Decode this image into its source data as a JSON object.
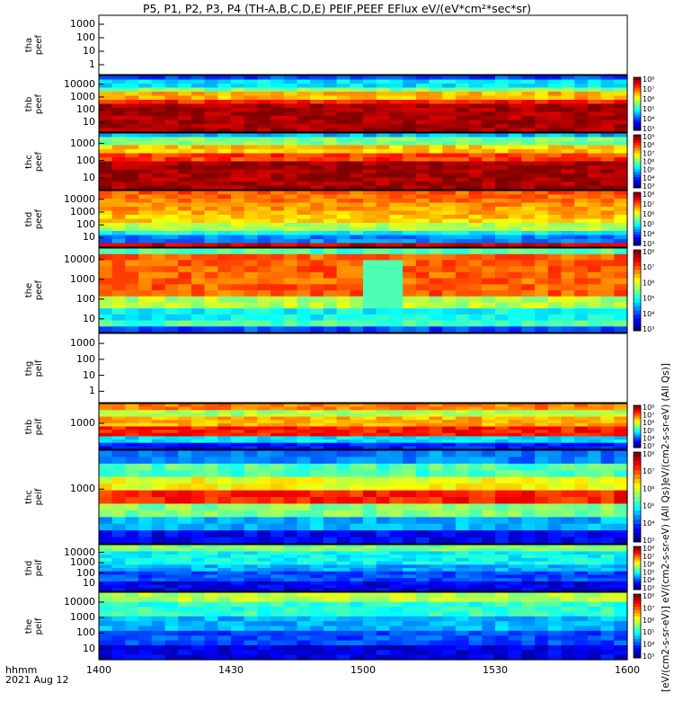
{
  "title": "P5, P1, P2, P3, P4 (TH-A,B,C,D,E) PEIF,PEEF EFlux eV/(eV*cm²*sec*sr)",
  "x_axis": {
    "label_line1": "hhmm",
    "label_line2": "2021 Aug 12",
    "ticks": [
      "1400",
      "1430",
      "1500",
      "1530",
      "1600"
    ]
  },
  "colorbar_unit_label": "[eV/(cm2-s-sr-eV)]  eV/(cm2-s-sr-eV) (All Qs)]eV/(cm2-s-sr-eV) (All Qs)]",
  "chart_data": [
    {
      "type": "heatmap",
      "probe": "tha",
      "species": "peef",
      "ylabel": "tha\npeef",
      "yticks": [
        "1000",
        "100",
        "10",
        "1"
      ],
      "has_data": false
    },
    {
      "type": "heatmap",
      "probe": "thb",
      "species": "peef",
      "ylabel": "thb\npeef",
      "yticks": [
        "10000",
        "1000",
        "100",
        "10"
      ],
      "has_data": true,
      "profile": "thb_peef"
    },
    {
      "type": "heatmap",
      "probe": "thc",
      "species": "peef",
      "ylabel": "thc\npeef",
      "yticks": [
        "1000",
        "100",
        "10"
      ],
      "has_data": true,
      "profile": "thc_peef"
    },
    {
      "type": "heatmap",
      "probe": "thd",
      "species": "peef",
      "ylabel": "thd\npeef",
      "yticks": [
        "10000",
        "1000",
        "100",
        "10"
      ],
      "has_data": true,
      "profile": "thd_peef"
    },
    {
      "type": "heatmap",
      "probe": "the",
      "species": "peef",
      "ylabel": "the\npeef",
      "yticks": [
        "10000",
        "1000",
        "100",
        "10"
      ],
      "has_data": true,
      "profile": "the_peef"
    },
    {
      "type": "heatmap",
      "probe": "thg",
      "species": "peif",
      "ylabel": "thg\npeif",
      "yticks": [
        "1000",
        "100",
        "10",
        "1"
      ],
      "has_data": false
    },
    {
      "type": "heatmap",
      "probe": "thb",
      "species": "peif",
      "ylabel": "thb\npeif",
      "yticks": [
        "1000"
      ],
      "has_data": true,
      "profile": "thb_peif"
    },
    {
      "type": "heatmap",
      "probe": "thc",
      "species": "peif",
      "ylabel": "thc\npeif",
      "yticks": [
        "1000"
      ],
      "has_data": true,
      "profile": "thc_peif"
    },
    {
      "type": "heatmap",
      "probe": "thd",
      "species": "peif",
      "ylabel": "thd\npeif",
      "yticks": [
        "10000",
        "1000",
        "100",
        "10"
      ],
      "has_data": true,
      "profile": "thd_peif"
    },
    {
      "type": "heatmap",
      "probe": "the",
      "species": "peif",
      "ylabel": "the\npeif",
      "yticks": [
        "10000",
        "1000",
        "100",
        "10"
      ],
      "has_data": true,
      "profile": "the_peif"
    }
  ],
  "colorbars": [
    {
      "panel": 1,
      "ticks": [
        "10⁸",
        "10⁷",
        "10⁶",
        "10⁵",
        "10⁴",
        "10³"
      ]
    },
    {
      "panel": 2,
      "ticks": [
        "10⁹",
        "10⁸",
        "10⁷",
        "10⁶",
        "10⁵",
        "10⁴",
        "10³"
      ]
    },
    {
      "panel": 3,
      "ticks": [
        "10⁸",
        "10⁷",
        "10⁶",
        "10⁵",
        "10⁴",
        "10³"
      ]
    },
    {
      "panel": 4,
      "ticks": [
        "10⁸",
        "10⁷",
        "10⁶",
        "10⁵",
        "10⁴",
        "10³"
      ]
    },
    {
      "panel": 6,
      "ticks": [
        "10⁸",
        "10⁷",
        "10⁶",
        "10⁵",
        "10⁴",
        "10³"
      ]
    },
    {
      "panel": 7,
      "ticks": [
        "10⁸",
        "10⁷",
        "10⁶",
        "10⁵",
        "10⁴",
        "10³"
      ]
    },
    {
      "panel": 8,
      "ticks": [
        "10⁸",
        "10⁷",
        "10⁶",
        "10⁵",
        "10⁴",
        "10³"
      ]
    },
    {
      "panel": 9,
      "ticks": [
        "10⁸",
        "10⁷",
        "10⁶",
        "10⁵",
        "10⁴",
        "10³"
      ]
    }
  ]
}
